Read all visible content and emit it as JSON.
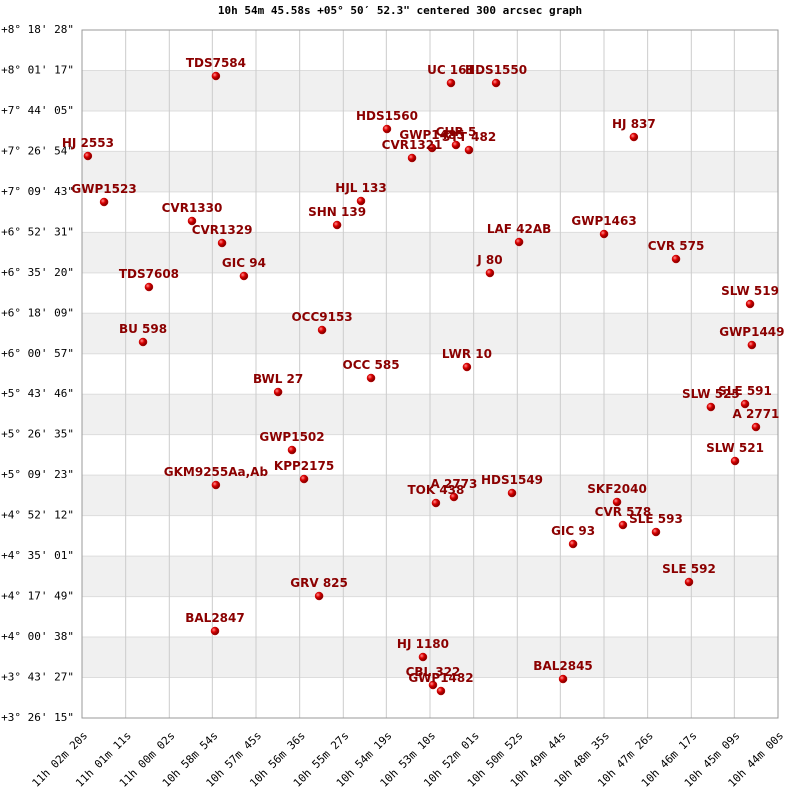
{
  "chart_data": {
    "type": "scatter",
    "title": "10h 54m 45.58s +05° 50′ 52.3\" centered 300 arcsec graph",
    "color": "#cc0000",
    "label_color": "#8b0000",
    "grid": true,
    "x_reversed": true,
    "labels": [
      "TDS7584",
      "UC  161",
      "HDS1550",
      "HDS1560",
      "GWP1485",
      "CHR  5",
      "STT 482",
      "CVR1321",
      "HJ  837",
      "HJ 2553",
      "GWP1523",
      "HJL 133",
      "CVR1330",
      "SHN 139",
      "CVR1329",
      "LAF  42AB",
      "GWP1463",
      "CVR 575",
      "GIC  94",
      "J   80",
      "TDS7608",
      "SLW 519",
      "OCC9153",
      "BU  598",
      "GWP1449",
      "LWR  10",
      "OCC 585",
      "BWL  27",
      "SLW 525",
      "SLE 591",
      "A  2771",
      "SLW 521",
      "GWP1502",
      "KPP2175",
      "GKM9255Aa,Ab",
      "A  2773",
      "TOK 438",
      "HDS1549",
      "SKF2040",
      "CVR 578",
      "SLE 593",
      "GIC  93",
      "SLE 592",
      "GRV 825",
      "BAL2847",
      "HJ 1180",
      "CBL 322",
      "GWP1482",
      "BAL2845"
    ],
    "x": [
      10.9801,
      10.8769,
      10.8571,
      10.905,
      10.8852,
      10.8747,
      10.869,
      10.894,
      10.7966,
      11.0363,
      11.0292,
      10.9164,
      10.9906,
      10.9269,
      10.9774,
      10.847,
      10.8097,
      10.7781,
      10.9678,
      10.8598,
      11.0095,
      10.7456,
      10.9335,
      11.0121,
      10.7448,
      10.8699,
      10.912,
      10.9528,
      10.7628,
      10.7478,
      10.743,
      10.7522,
      10.9467,
      10.9414,
      10.9801,
      10.8756,
      10.8835,
      10.8501,
      10.804,
      10.8014,
      10.7869,
      10.8233,
      10.7724,
      10.9348,
      10.9805,
      10.8892,
      10.8848,
      10.8813,
      10.8277
    ],
    "y": [
      7.9821,
      7.9326,
      7.9326,
      7.6069,
      7.4725,
      7.4937,
      7.4583,
      7.4017,
      7.5503,
      7.4158,
      7.0902,
      7.0973,
      6.9557,
      6.9274,
      6.8,
      6.8071,
      6.8637,
      6.6867,
      6.5664,
      6.5876,
      6.4885,
      6.3682,
      6.1841,
      6.0992,
      6.0779,
      5.9222,
      5.8443,
      5.7452,
      5.639,
      5.6603,
      5.4974,
      5.2568,
      5.3346,
      5.1293,
      5.0869,
      5.0019,
      4.9594,
      5.0302,
      4.9665,
      4.8037,
      4.7541,
      4.6692,
      4.4002,
      4.3011,
      4.0533,
      3.8693,
      3.6711,
      3.6286,
      3.7135
    ],
    "xlim": [
      11.03889,
      10.73333
    ],
    "ylim": [
      3.4375,
      8.30778
    ],
    "xticks": [
      {
        "value": 11.03889,
        "label": "11h 02m 20s"
      },
      {
        "value": 11.01972,
        "label": "11h 01m 11s"
      },
      {
        "value": 11.00056,
        "label": "11h 00m 02s"
      },
      {
        "value": 10.98167,
        "label": "10h 58m 54s"
      },
      {
        "value": 10.9625,
        "label": "10h 57m 45s"
      },
      {
        "value": 10.94333,
        "label": "10h 56m 36s"
      },
      {
        "value": 10.92417,
        "label": "10h 55m 27s"
      },
      {
        "value": 10.90528,
        "label": "10h 54m 19s"
      },
      {
        "value": 10.88611,
        "label": "10h 53m 10s"
      },
      {
        "value": 10.86694,
        "label": "10h 52m 01s"
      },
      {
        "value": 10.84778,
        "label": "10h 50m 52s"
      },
      {
        "value": 10.82889,
        "label": "10h 49m 44s"
      },
      {
        "value": 10.80972,
        "label": "10h 48m 35s"
      },
      {
        "value": 10.79056,
        "label": "10h 47m 26s"
      },
      {
        "value": 10.77139,
        "label": "10h 46m 17s"
      },
      {
        "value": 10.7525,
        "label": "10h 45m 09s"
      },
      {
        "value": 10.73333,
        "label": "10h 44m 00s"
      }
    ],
    "yticks": [
      {
        "value": 8.30778,
        "label": "+8° 18' 28\""
      },
      {
        "value": 8.02139,
        "label": "+8° 01' 17\""
      },
      {
        "value": 7.73472,
        "label": "+7° 44' 05\""
      },
      {
        "value": 7.44833,
        "label": "+7° 26' 54\""
      },
      {
        "value": 7.16194,
        "label": "+7° 09' 43\""
      },
      {
        "value": 6.87528,
        "label": "+6° 52' 31\""
      },
      {
        "value": 6.58889,
        "label": "+6° 35' 20\""
      },
      {
        "value": 6.3025,
        "label": "+6° 18' 09\""
      },
      {
        "value": 6.01583,
        "label": "+6° 00' 57\""
      },
      {
        "value": 5.72944,
        "label": "+5° 43' 46\""
      },
      {
        "value": 5.44306,
        "label": "+5° 26' 35\""
      },
      {
        "value": 5.15639,
        "label": "+5° 09' 23\""
      },
      {
        "value": 4.87,
        "label": "+4° 52' 12\""
      },
      {
        "value": 4.58361,
        "label": "+4° 35' 01\""
      },
      {
        "value": 4.29694,
        "label": "+4° 17' 49\""
      },
      {
        "value": 4.01056,
        "label": "+4° 00' 38\""
      },
      {
        "value": 3.72417,
        "label": "+3° 43' 27\""
      },
      {
        "value": 3.4375,
        "label": "+3° 26' 15\""
      }
    ]
  }
}
